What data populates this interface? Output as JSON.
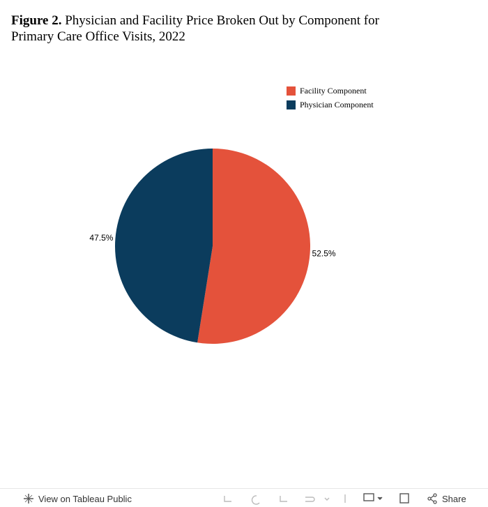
{
  "chart_data": {
    "type": "pie",
    "title_label": "Figure 2.",
    "title": "Physician and Facility Price Broken Out by Component for Primary Care Office Visits, 2022",
    "categories": [
      "Facility Component",
      "Physician Component"
    ],
    "values": [
      52.5,
      47.5
    ],
    "value_labels": [
      "52.5%",
      "47.5%"
    ],
    "colors": [
      "#e4523b",
      "#0b3c5d"
    ],
    "legend": "top-right"
  },
  "toolbar": {
    "view_link": "View on Tableau Public",
    "share": "Share"
  }
}
